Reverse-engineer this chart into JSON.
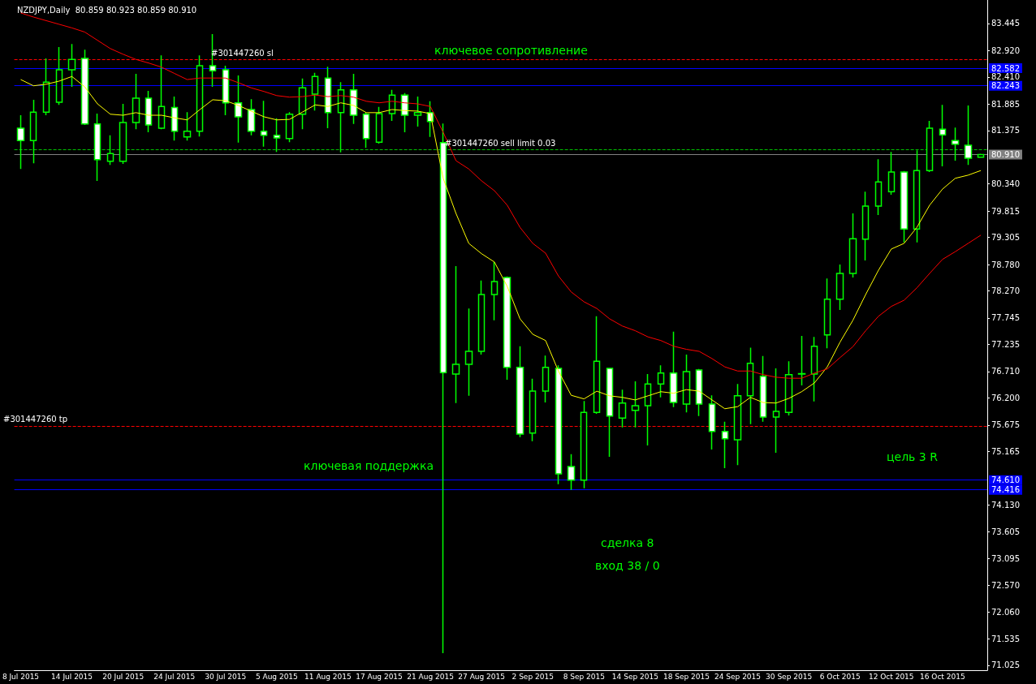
{
  "chart_data": {
    "type": "candlestick",
    "title": "NZDJPY,Daily  80.859 80.923 80.859 80.910",
    "color": "#00ff00",
    "marker": "none",
    "categories": [
      "8 Jul 2015",
      null,
      null,
      null,
      "14 Jul 2015",
      null,
      null,
      null,
      "20 Jul 2015",
      null,
      null,
      null,
      "24 Jul 2015",
      null,
      null,
      null,
      "30 Jul 2015",
      null,
      null,
      null,
      "5 Aug 2015",
      null,
      null,
      null,
      "11 Aug 2015",
      null,
      null,
      null,
      "17 Aug 2015",
      null,
      null,
      null,
      "21 Aug 2015",
      null,
      null,
      null,
      "27 Aug 2015",
      null,
      null,
      null,
      "2 Sep 2015",
      null,
      null,
      null,
      "8 Sep 2015",
      null,
      null,
      null,
      "14 Sep 2015",
      null,
      null,
      null,
      "18 Sep 2015",
      null,
      null,
      null,
      "24 Sep 2015",
      null,
      null,
      null,
      "30 Sep 2015",
      null,
      null,
      null,
      "6 Oct 2015",
      null,
      null,
      null,
      "12 Oct 2015",
      null,
      null,
      null,
      "16 Oct 2015",
      null,
      null,
      null
    ],
    "ohlc": [
      [
        81.42,
        81.67,
        80.63,
        81.18
      ],
      [
        81.18,
        81.97,
        80.74,
        81.73
      ],
      [
        81.73,
        82.77,
        81.67,
        82.31
      ],
      [
        81.92,
        82.99,
        81.87,
        82.55
      ],
      [
        82.55,
        83.05,
        82.22,
        82.75
      ],
      [
        82.77,
        82.94,
        81.48,
        81.5
      ],
      [
        81.5,
        81.7,
        80.4,
        80.81
      ],
      [
        80.78,
        81.28,
        80.71,
        80.93
      ],
      [
        80.78,
        81.89,
        80.73,
        81.53
      ],
      [
        81.53,
        82.47,
        81.4,
        82.0
      ],
      [
        82.0,
        82.14,
        81.34,
        81.48
      ],
      [
        81.42,
        82.83,
        81.4,
        81.84
      ],
      [
        81.82,
        82.03,
        81.18,
        81.36
      ],
      [
        81.25,
        81.73,
        81.18,
        81.36
      ],
      [
        81.36,
        82.83,
        81.26,
        82.63
      ],
      [
        82.63,
        83.24,
        82.22,
        82.53
      ],
      [
        82.55,
        82.63,
        81.67,
        81.91
      ],
      [
        81.91,
        82.44,
        81.14,
        81.64
      ],
      [
        81.78,
        81.98,
        81.28,
        81.36
      ],
      [
        81.36,
        81.95,
        81.06,
        81.28
      ],
      [
        81.28,
        81.61,
        80.96,
        81.23
      ],
      [
        81.22,
        81.73,
        81.15,
        81.69
      ],
      [
        81.69,
        82.38,
        81.4,
        82.2
      ],
      [
        82.08,
        82.49,
        81.76,
        82.42
      ],
      [
        82.39,
        82.61,
        81.42,
        81.72
      ],
      [
        81.72,
        82.31,
        80.95,
        82.16
      ],
      [
        82.16,
        82.47,
        81.5,
        81.67
      ],
      [
        81.69,
        81.72,
        81.04,
        81.22
      ],
      [
        81.15,
        81.83,
        81.12,
        81.7
      ],
      [
        81.7,
        82.16,
        81.56,
        82.06
      ],
      [
        82.06,
        82.1,
        81.34,
        81.67
      ],
      [
        81.67,
        82.03,
        81.45,
        81.72
      ],
      [
        81.72,
        81.94,
        81.25,
        81.55
      ],
      [
        81.14,
        81.51,
        71.26,
        76.69
      ],
      [
        76.66,
        78.75,
        76.1,
        76.85
      ],
      [
        76.85,
        77.93,
        76.24,
        77.1
      ],
      [
        77.1,
        78.47,
        77.04,
        78.2
      ],
      [
        78.2,
        78.83,
        77.7,
        78.45
      ],
      [
        78.53,
        78.55,
        76.55,
        76.79
      ],
      [
        76.79,
        77.2,
        75.44,
        75.5
      ],
      [
        75.52,
        76.57,
        75.36,
        76.33
      ],
      [
        76.33,
        77.02,
        76.11,
        76.79
      ],
      [
        76.77,
        76.83,
        74.53,
        74.73
      ],
      [
        74.87,
        75.11,
        74.42,
        74.61
      ],
      [
        74.61,
        76.14,
        74.45,
        75.92
      ],
      [
        75.92,
        77.78,
        75.89,
        76.91
      ],
      [
        76.77,
        76.77,
        75.06,
        75.85
      ],
      [
        75.81,
        76.36,
        75.63,
        76.1
      ],
      [
        75.96,
        76.52,
        75.63,
        76.05
      ],
      [
        76.05,
        76.66,
        75.28,
        76.47
      ],
      [
        76.47,
        76.83,
        76.21,
        76.68
      ],
      [
        76.68,
        77.48,
        76.02,
        76.11
      ],
      [
        76.08,
        77.04,
        75.92,
        76.71
      ],
      [
        76.74,
        76.76,
        75.85,
        76.08
      ],
      [
        76.08,
        76.25,
        75.2,
        75.55
      ],
      [
        75.55,
        75.74,
        74.84,
        75.41
      ],
      [
        75.39,
        76.47,
        74.9,
        76.24
      ],
      [
        76.24,
        77.17,
        75.69,
        76.87
      ],
      [
        76.62,
        77.01,
        75.74,
        75.83
      ],
      [
        75.83,
        76.77,
        75.14,
        75.94
      ],
      [
        75.92,
        76.91,
        75.86,
        76.65
      ],
      [
        76.66,
        77.4,
        76.44,
        76.67
      ],
      [
        76.66,
        77.38,
        76.13,
        77.2
      ],
      [
        77.42,
        78.51,
        77.16,
        78.11
      ],
      [
        78.11,
        78.78,
        77.9,
        78.61
      ],
      [
        78.61,
        79.77,
        78.53,
        79.28
      ],
      [
        79.27,
        80.19,
        78.86,
        79.91
      ],
      [
        79.91,
        80.82,
        79.74,
        80.38
      ],
      [
        80.19,
        80.96,
        80.13,
        80.57
      ],
      [
        80.57,
        80.59,
        79.21,
        79.47
      ],
      [
        79.47,
        80.99,
        79.21,
        80.6
      ],
      [
        80.6,
        81.56,
        80.57,
        81.42
      ],
      [
        81.4,
        81.87,
        80.68,
        81.29
      ],
      [
        81.18,
        81.43,
        80.79,
        81.11
      ],
      [
        81.09,
        81.86,
        80.71,
        80.84
      ],
      [
        80.859,
        80.923,
        80.859,
        80.91
      ]
    ],
    "series": [
      {
        "type": "line",
        "color": "#ffff00",
        "values": [
          82.36,
          82.24,
          82.27,
          82.33,
          82.42,
          82.22,
          81.89,
          81.69,
          81.67,
          81.72,
          81.67,
          81.67,
          81.62,
          81.58,
          81.78,
          81.97,
          81.95,
          81.86,
          81.75,
          81.64,
          81.58,
          81.59,
          81.73,
          81.87,
          81.84,
          81.91,
          81.86,
          81.72,
          81.72,
          81.78,
          81.76,
          81.75,
          81.7,
          80.45,
          79.77,
          79.19,
          78.99,
          78.83,
          78.36,
          77.73,
          77.43,
          77.31,
          76.72,
          76.25,
          76.18,
          76.33,
          76.24,
          76.21,
          76.16,
          76.24,
          76.32,
          76.29,
          76.36,
          76.33,
          76.16,
          75.99,
          76.03,
          76.21,
          76.11,
          76.1,
          76.19,
          76.32,
          76.49,
          76.8,
          77.28,
          77.7,
          78.2,
          78.67,
          79.08,
          79.19,
          79.5,
          79.93,
          80.24,
          80.45,
          80.51,
          80.6
        ]
      },
      {
        "type": "line",
        "color": "#ff0000",
        "values": [
          83.65,
          83.57,
          83.5,
          83.43,
          83.36,
          83.28,
          83.12,
          82.96,
          82.85,
          82.75,
          82.68,
          82.6,
          82.48,
          82.36,
          82.39,
          82.39,
          82.39,
          82.3,
          82.2,
          82.13,
          82.05,
          82.02,
          82.03,
          82.06,
          82.03,
          82.05,
          82.02,
          81.94,
          81.91,
          81.94,
          81.91,
          81.89,
          81.84,
          81.34,
          80.79,
          80.63,
          80.4,
          80.21,
          79.93,
          79.5,
          79.19,
          79.0,
          78.56,
          78.25,
          78.06,
          77.93,
          77.73,
          77.59,
          77.5,
          77.38,
          77.31,
          77.2,
          77.14,
          77.1,
          76.96,
          76.8,
          76.72,
          76.72,
          76.65,
          76.6,
          76.58,
          76.58,
          76.68,
          76.76,
          76.98,
          77.19,
          77.5,
          77.78,
          77.97,
          78.09,
          78.33,
          78.61,
          78.88,
          79.03,
          79.19,
          79.35
        ]
      }
    ],
    "ylim": [
      70.93,
      83.9
    ],
    "yticks": [
      83.445,
      {
        "value": 82.92,
        "label": "82.920"
      },
      {
        "value": 82.41,
        "label": "82.410"
      },
      81.885,
      81.375,
      {
        "value": 80.34,
        "label": "80.340"
      },
      79.815,
      79.305,
      {
        "value": 78.78,
        "label": "78.780"
      },
      {
        "value": 78.27,
        "label": "78.270"
      },
      77.745,
      77.235,
      {
        "value": 76.71,
        "label": "76.710"
      },
      {
        "value": 76.2,
        "label": "76.200"
      },
      75.675,
      75.165,
      {
        "value": 74.13,
        "label": "74.130"
      },
      73.605,
      73.095,
      {
        "value": 72.57,
        "label": "72.570"
      },
      {
        "value": 72.06,
        "label": "72.060"
      },
      71.535,
      71.025
    ],
    "ref_lines": [
      {
        "axis": "y",
        "value": 82.75,
        "label": "#301447260 sl",
        "color": "#ff0000",
        "line_style": "dashed"
      },
      {
        "axis": "y",
        "value": 82.582,
        "label": "82.582",
        "color": "#0000ff",
        "line_style": "solid"
      },
      {
        "axis": "y",
        "value": 82.243,
        "label": "82.243",
        "color": "#0000ff",
        "line_style": "solid"
      },
      {
        "axis": "y",
        "value": 81.0,
        "label": "#301447260 sell limit 0.03",
        "color": "#00c000",
        "line_style": "dashed"
      },
      {
        "axis": "y",
        "value": 80.91,
        "label": "80.910",
        "color": "#808080",
        "line_style": "solid"
      },
      {
        "axis": "y",
        "value": 75.66,
        "label": "#301447260 tp",
        "color": "#ff0000",
        "line_style": "dashed"
      },
      {
        "axis": "y",
        "value": 74.61,
        "label": "74.610",
        "color": "#0000ff",
        "line_style": "solid"
      },
      {
        "axis": "y",
        "value": 74.416,
        "label": "74.416",
        "color": "#0000ff",
        "line_style": "solid"
      }
    ],
    "annotations": [
      "ключевое сопротивление",
      "ключевая поддержка",
      "цель 3 R",
      "сделка 8",
      "вход 38 / 0"
    ]
  }
}
